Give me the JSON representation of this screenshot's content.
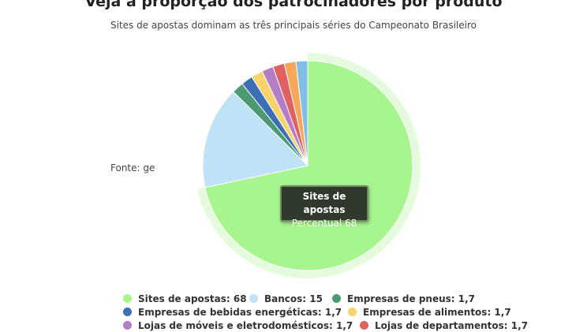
{
  "chart_data": {
    "type": "pie",
    "title": "Veja a proporção dos patrocinadores por produto",
    "subtitle": "Sites de apostas dominam as três principais séries do Campeonato Brasileiro",
    "source": "Fonte: ge",
    "slices": [
      {
        "name": "Sites de apostas",
        "value": 68,
        "color": "#a7f58f"
      },
      {
        "name": "Bancos",
        "value": 15,
        "color": "#bfe2f7"
      },
      {
        "name": "Empresas de pneus",
        "value": 1.7,
        "color": "#4c9a72"
      },
      {
        "name": "Empresas de bebidas energéticas",
        "value": 1.7,
        "color": "#3d6fb6"
      },
      {
        "name": "Empresas de alimentos",
        "value": 1.7,
        "color": "#f6d36b"
      },
      {
        "name": "Lojas de móveis e eletrodomésticos",
        "value": 1.7,
        "color": "#b47dc6"
      },
      {
        "name": "Lojas de departamentos",
        "value": 1.7,
        "color": "#e06161"
      },
      {
        "name": "",
        "value": 1.7,
        "color": "#f5a85c"
      },
      {
        "name": "",
        "value": 1.7,
        "color": "#7fbfe6"
      }
    ],
    "highlighted": "Sites de apostas",
    "legend_position": "bottom"
  },
  "tooltip": {
    "title": "Sites de apostas",
    "line": "Percentual 68"
  },
  "legend_rows": [
    [
      {
        "label": "Sites de apostas: 68",
        "color": "#a7f58f"
      },
      {
        "label": "Bancos: 15",
        "color": "#bfe2f7"
      },
      {
        "label": "Empresas de pneus: 1,7",
        "color": "#4c9a72"
      }
    ],
    [
      {
        "label": "Empresas de bebidas energéticas: 1,7",
        "color": "#3d6fb6"
      },
      {
        "label": "Empresas de alimentos: 1,7",
        "color": "#f6d36b"
      }
    ],
    [
      {
        "label": "Lojas de móveis e eletrodomésticos: 1,7",
        "color": "#b47dc6"
      },
      {
        "label": "Lojas de departamentos: 1,7",
        "color": "#e06161"
      }
    ]
  ]
}
